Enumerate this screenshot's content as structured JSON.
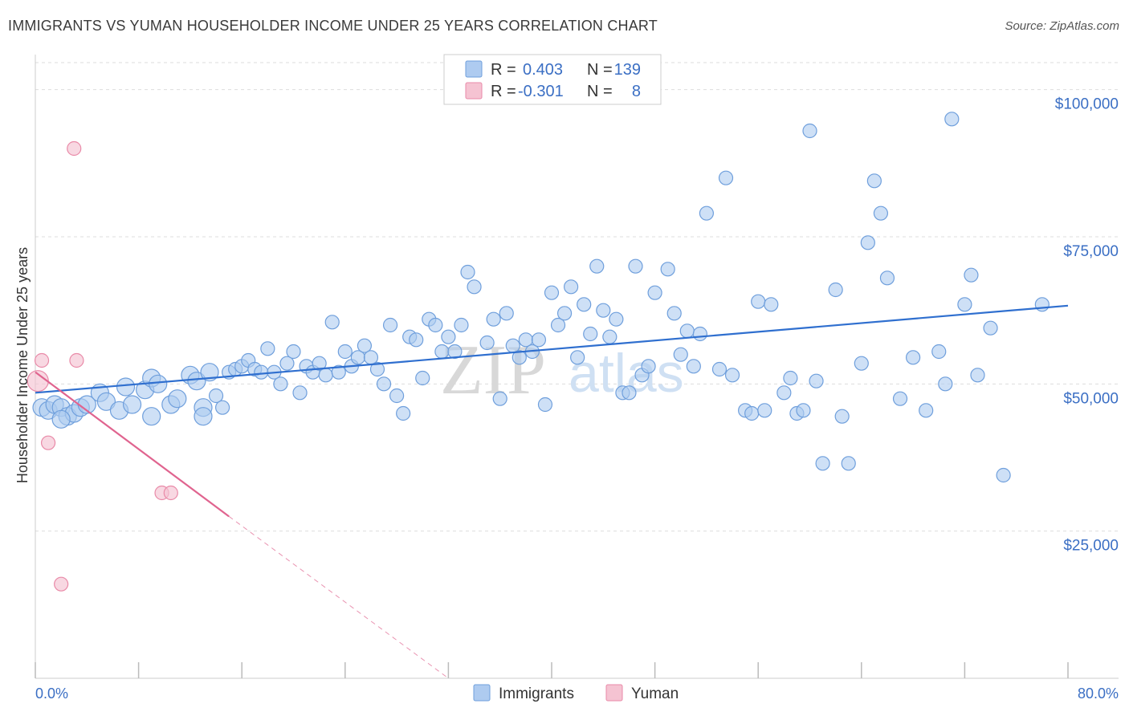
{
  "header": {
    "title": "IMMIGRANTS VS YUMAN HOUSEHOLDER INCOME UNDER 25 YEARS CORRELATION CHART",
    "source": "Source: ZipAtlas.com"
  },
  "watermark": {
    "part1": "ZIP",
    "part2": "atlas"
  },
  "legend_top": {
    "rows": [
      {
        "r_label": "R =",
        "r_value": "0.403",
        "n_label": "N =",
        "n_value": "139",
        "color": "#aecbf0"
      },
      {
        "r_label": "R =",
        "r_value": "-0.301",
        "n_label": "N =",
        "n_value": "8",
        "color": "#f5b9cc"
      }
    ]
  },
  "legend_bottom": {
    "items": [
      "Immigrants",
      "Yuman"
    ]
  },
  "colors": {
    "blue_fill": "#aecbf0",
    "blue_stroke": "#6f9fdc",
    "blue_line": "#2f6fcf",
    "pink_fill": "#f5c3d2",
    "pink_stroke": "#e98aa8",
    "pink_line": "#e0648f",
    "tick_text": "#3b6fc4",
    "grid": "#dddddd"
  },
  "chart_data": {
    "type": "scatter",
    "title": "IMMIGRANTS VS YUMAN HOUSEHOLDER INCOME UNDER 25 YEARS CORRELATION CHART",
    "xlabel": "",
    "ylabel": "Householder Income Under 25 years",
    "xlim": [
      0,
      80
    ],
    "ylim": [
      0,
      105000
    ],
    "x_tick_labels": [
      "0.0%",
      "80.0%"
    ],
    "y_ticks": [
      {
        "value": 25000,
        "label": "$25,000"
      },
      {
        "value": 50000,
        "label": "$50,000"
      },
      {
        "value": 75000,
        "label": "$75,000"
      },
      {
        "value": 100000,
        "label": "$100,000"
      }
    ],
    "grid": "horizontal dashed",
    "series": [
      {
        "name": "Immigrants",
        "color": "#aecbf0",
        "trend": {
          "x": [
            0,
            80
          ],
          "y": [
            48500,
            63300
          ]
        },
        "points": [
          [
            0.5,
            46000
          ],
          [
            1,
            45500
          ],
          [
            1.5,
            46500
          ],
          [
            2,
            46000
          ],
          [
            2.5,
            44500
          ],
          [
            3,
            45000
          ],
          [
            3.5,
            46000
          ],
          [
            4,
            46500
          ],
          [
            5,
            48500
          ],
          [
            5.5,
            47000
          ],
          [
            6.5,
            45500
          ],
          [
            7,
            49500
          ],
          [
            7.5,
            46500
          ],
          [
            8.5,
            49000
          ],
          [
            9,
            51000
          ],
          [
            9.5,
            50000
          ],
          [
            10.5,
            46500
          ],
          [
            11,
            47500
          ],
          [
            12,
            51500
          ],
          [
            12.5,
            50500
          ],
          [
            13,
            46000
          ],
          [
            13.5,
            52000
          ],
          [
            14,
            48000
          ],
          [
            14.5,
            46000
          ],
          [
            15,
            52000
          ],
          [
            15.5,
            52500
          ],
          [
            16,
            53000
          ],
          [
            16.5,
            54000
          ],
          [
            17,
            52500
          ],
          [
            17.5,
            52000
          ],
          [
            18,
            56000
          ],
          [
            18.5,
            52000
          ],
          [
            19,
            50000
          ],
          [
            19.5,
            53500
          ],
          [
            20,
            55500
          ],
          [
            20.5,
            48500
          ],
          [
            21,
            53000
          ],
          [
            21.5,
            52000
          ],
          [
            22,
            53500
          ],
          [
            22.5,
            51500
          ],
          [
            23,
            60500
          ],
          [
            23.5,
            52000
          ],
          [
            24,
            55500
          ],
          [
            24.5,
            53000
          ],
          [
            25,
            54500
          ],
          [
            25.5,
            56500
          ],
          [
            26,
            54500
          ],
          [
            26.5,
            52500
          ],
          [
            27,
            50000
          ],
          [
            27.5,
            60000
          ],
          [
            28,
            48000
          ],
          [
            28.5,
            45000
          ],
          [
            29,
            58000
          ],
          [
            29.5,
            57500
          ],
          [
            30,
            51000
          ],
          [
            30.5,
            61000
          ],
          [
            31,
            60000
          ],
          [
            31.5,
            55500
          ],
          [
            32,
            58000
          ],
          [
            32.5,
            55500
          ],
          [
            33,
            60000
          ],
          [
            33.5,
            69000
          ],
          [
            34,
            66500
          ],
          [
            35,
            57000
          ],
          [
            35.5,
            61000
          ],
          [
            36,
            47500
          ],
          [
            36.5,
            62000
          ],
          [
            37,
            56500
          ],
          [
            37.5,
            54500
          ],
          [
            38,
            57500
          ],
          [
            38.5,
            55500
          ],
          [
            39,
            57500
          ],
          [
            39.5,
            46500
          ],
          [
            40,
            65500
          ],
          [
            40.5,
            60000
          ],
          [
            41,
            62000
          ],
          [
            41.5,
            66500
          ],
          [
            42,
            54500
          ],
          [
            42.5,
            63500
          ],
          [
            43,
            58500
          ],
          [
            43.5,
            70000
          ],
          [
            44,
            62500
          ],
          [
            44.5,
            58000
          ],
          [
            45,
            61000
          ],
          [
            45.5,
            48500
          ],
          [
            46,
            48500
          ],
          [
            46.5,
            70000
          ],
          [
            47,
            51500
          ],
          [
            47.5,
            53000
          ],
          [
            48,
            65500
          ],
          [
            49,
            69500
          ],
          [
            49.5,
            62000
          ],
          [
            50,
            55000
          ],
          [
            50.5,
            59000
          ],
          [
            51,
            53000
          ],
          [
            51.5,
            58500
          ],
          [
            52,
            79000
          ],
          [
            53,
            52500
          ],
          [
            53.5,
            85000
          ],
          [
            54,
            51500
          ],
          [
            55,
            45500
          ],
          [
            55.5,
            45000
          ],
          [
            56,
            64000
          ],
          [
            56.5,
            45500
          ],
          [
            57,
            63500
          ],
          [
            58,
            48500
          ],
          [
            58.5,
            51000
          ],
          [
            59,
            45000
          ],
          [
            59.5,
            45500
          ],
          [
            60,
            93000
          ],
          [
            60.5,
            50500
          ],
          [
            61,
            36500
          ],
          [
            62,
            66000
          ],
          [
            62.5,
            44500
          ],
          [
            63,
            36500
          ],
          [
            64,
            53500
          ],
          [
            64.5,
            74000
          ],
          [
            65,
            84500
          ],
          [
            65.5,
            79000
          ],
          [
            66,
            68000
          ],
          [
            67,
            47500
          ],
          [
            68,
            54500
          ],
          [
            69,
            45500
          ],
          [
            70,
            55500
          ],
          [
            70.5,
            50000
          ],
          [
            71,
            95000
          ],
          [
            72,
            63500
          ],
          [
            72.5,
            68500
          ],
          [
            73,
            51500
          ],
          [
            74,
            59500
          ],
          [
            75,
            34500
          ],
          [
            78,
            63500
          ],
          [
            9,
            44500
          ],
          [
            13,
            44500
          ],
          [
            2,
            44000
          ]
        ]
      },
      {
        "name": "Yuman",
        "color": "#f5c3d2",
        "trend": {
          "x": [
            0,
            15
          ],
          "y": [
            52000,
            27500
          ]
        },
        "trend_dashed": {
          "x": [
            15,
            32
          ],
          "y": [
            27500,
            0
          ]
        },
        "points": [
          [
            0.2,
            50500
          ],
          [
            0.5,
            54000
          ],
          [
            1,
            40000
          ],
          [
            2,
            16000
          ],
          [
            3,
            90000
          ],
          [
            3.2,
            54000
          ],
          [
            9.8,
            31500
          ],
          [
            10.5,
            31500
          ]
        ]
      }
    ]
  }
}
